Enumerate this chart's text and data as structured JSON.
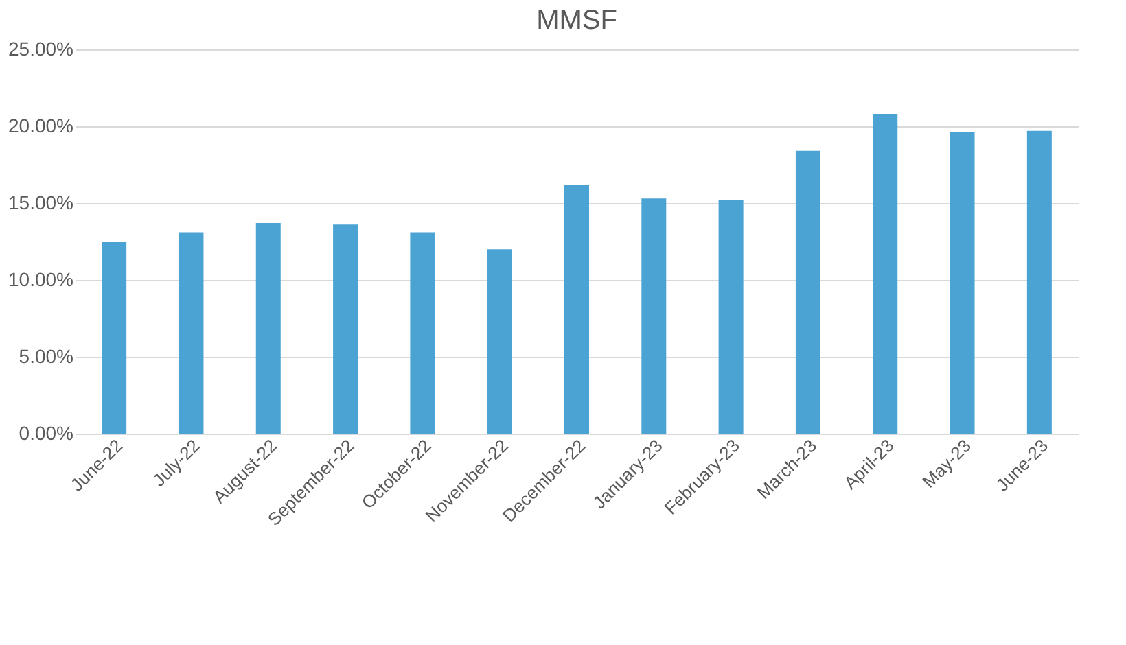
{
  "chart_data": {
    "type": "bar",
    "title": "MMSF",
    "categories": [
      "June-22",
      "July-22",
      "August-22",
      "September-22",
      "October-22",
      "November-22",
      "December-22",
      "January-23",
      "February-23",
      "March-23",
      "April-23",
      "May-23",
      "June-23"
    ],
    "values": [
      12.5,
      13.1,
      13.7,
      13.6,
      13.1,
      12.0,
      16.2,
      15.3,
      15.2,
      18.4,
      20.8,
      19.6,
      19.7
    ],
    "color": "#4ba3d3",
    "ylim": [
      0,
      25
    ],
    "yticks": [
      {
        "value": 0,
        "label": "0.00%"
      },
      {
        "value": 5,
        "label": "5.00%"
      },
      {
        "value": 10,
        "label": "10.00%"
      },
      {
        "value": 15,
        "label": "15.00%"
      },
      {
        "value": 20,
        "label": "20.00%"
      },
      {
        "value": 25,
        "label": "25.00%"
      }
    ],
    "grid": "y"
  }
}
